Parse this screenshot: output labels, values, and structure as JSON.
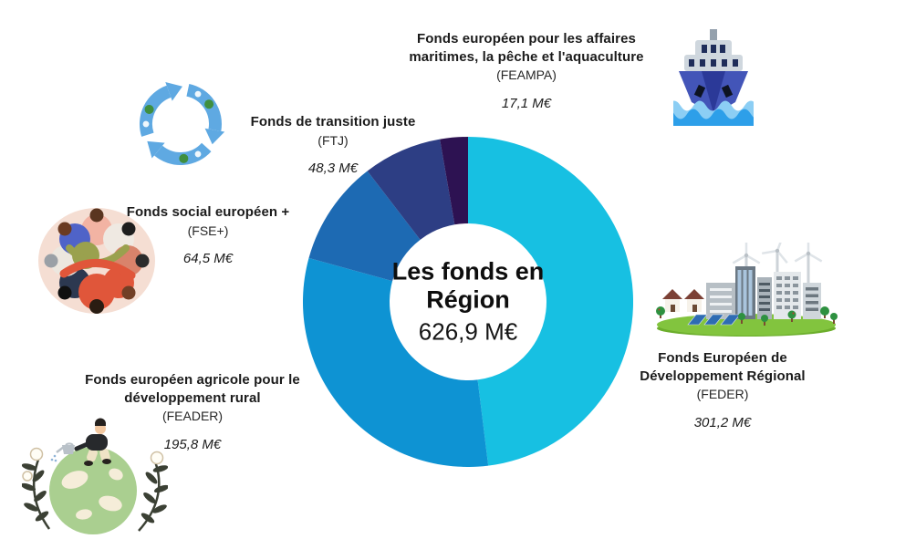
{
  "page": {
    "background": "#ffffff"
  },
  "chart_data": {
    "type": "pie",
    "variant": "donut",
    "title": "Les fonds en Région",
    "center": {
      "line1": "Les fonds en",
      "line2": "Région",
      "total": "626,9 M€"
    },
    "total_value": 626.9,
    "unit": "M€",
    "start_angle_deg": 0,
    "direction": "clockwise",
    "legend_position": "around",
    "series": [
      {
        "name": "FEDER",
        "label": "Fonds Européen de Développement Régional",
        "acronym": "(FEDER)",
        "value": 301.2,
        "display": "301,2 M€",
        "color": "#17c0e2",
        "icon": "city-windfarm-icon"
      },
      {
        "name": "FEADER",
        "label": "Fonds européen agricole pour le développement rural",
        "acronym": "(FEADER)",
        "value": 195.8,
        "display": "195,8 M€",
        "color": "#0e93d3",
        "icon": "globe-gardener-icon"
      },
      {
        "name": "FSE",
        "label": "Fonds social européen +",
        "acronym": "(FSE+)",
        "value": 64.5,
        "display": "64,5 M€",
        "color": "#1d6ab3",
        "icon": "group-hug-icon"
      },
      {
        "name": "FTJ",
        "label": "Fonds de transition juste",
        "acronym": "(FTJ)",
        "value": 48.3,
        "display": "48,3 M€",
        "color": "#2d3e84",
        "icon": "recycle-icon"
      },
      {
        "name": "FEAMPA",
        "label": "Fonds européen pour les affaires maritimes, la pêche et l'aquaculture",
        "acronym": "(FEAMPA)",
        "value": 17.1,
        "display": "17,1 M€",
        "color": "#2d1252",
        "icon": "ship-icon"
      }
    ]
  }
}
